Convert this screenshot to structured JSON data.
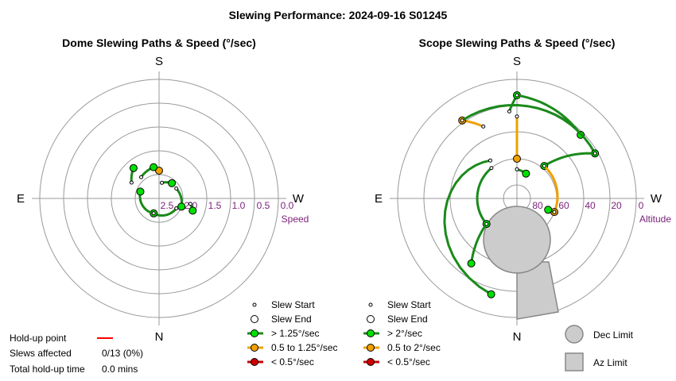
{
  "title": "Slewing Performance: 2024-09-16 S01245",
  "colors": {
    "fast": "#1a8a1a",
    "medium": "#f0a000",
    "slow": "#cc0000",
    "grid": "#999999",
    "tick": "#7a1f7a"
  },
  "chart_data": [
    {
      "type": "scatter",
      "subtitle": "Dome Slewing Paths & Speed (°/sec)",
      "directions": {
        "top": "S",
        "bottom": "N",
        "left": "E",
        "right": "W"
      },
      "axis_name": "Speed",
      "ticks": [
        "2.5",
        "2.0",
        "1.5",
        "1.0",
        "0.5",
        "0.0"
      ],
      "rlim": [
        3.0,
        0.0
      ],
      "slews": [
        {
          "start": {
            "az": 0,
            "r": 2.3
          },
          "end": {
            "az": 0,
            "r": 2.3
          },
          "speed_class": "medium"
        },
        {
          "start": {
            "az": 10,
            "r": 2.6
          },
          "end": {
            "az": 40,
            "r": 2.5
          },
          "speed_class": "fast"
        },
        {
          "start": {
            "az": 60,
            "r": 2.5
          },
          "end": {
            "az": 110,
            "r": 2.4
          },
          "speed_class": "fast"
        },
        {
          "start": {
            "az": 120,
            "r": 2.5
          },
          "end": {
            "az": 200,
            "r": 2.6
          },
          "speed_class": "fast"
        },
        {
          "start": {
            "az": 200,
            "r": 2.6
          },
          "end": {
            "az": 290,
            "r": 2.5
          },
          "speed_class": "fast"
        },
        {
          "start": {
            "az": 300,
            "r": 2.2
          },
          "end": {
            "az": 320,
            "r": 2.0
          },
          "speed_class": "fast"
        },
        {
          "start": {
            "az": 320,
            "r": 2.3
          },
          "end": {
            "az": 350,
            "r": 2.2
          },
          "speed_class": "fast"
        },
        {
          "start": {
            "az": 100,
            "r": 2.2
          },
          "end": {
            "az": 110,
            "r": 2.1
          },
          "speed_class": "fast"
        }
      ],
      "legend": {
        "start": "Slew Start",
        "end": "Slew End",
        "fast": "> 1.25°/sec",
        "medium": "0.5 to 1.25°/sec",
        "slow": "< 0.5°/sec"
      }
    },
    {
      "type": "scatter",
      "subtitle": "Scope Slewing Paths & Speed (°/sec)",
      "directions": {
        "top": "S",
        "bottom": "N",
        "left": "E",
        "right": "W"
      },
      "axis_name": "Altitude",
      "ticks": [
        "80",
        "60",
        "40",
        "20",
        "0"
      ],
      "rlim": [
        90,
        0
      ],
      "slews": [
        {
          "start": {
            "az": 355,
            "alt": 24
          },
          "end": {
            "az": 0,
            "alt": 12
          },
          "speed_class": "fast"
        },
        {
          "start": {
            "az": 0,
            "alt": 12
          },
          "end": {
            "az": 45,
            "alt": 22
          },
          "speed_class": "fast"
        },
        {
          "start": {
            "az": 0,
            "alt": 28
          },
          "end": {
            "az": 0,
            "alt": 60
          },
          "speed_class": "medium"
        },
        {
          "start": {
            "az": 335,
            "alt": 30
          },
          "end": {
            "az": 325,
            "alt": 18
          },
          "speed_class": "medium"
        },
        {
          "start": {
            "az": 325,
            "alt": 18
          },
          "end": {
            "az": 60,
            "alt": 22
          },
          "speed_class": "fast"
        },
        {
          "start": {
            "az": 60,
            "alt": 22
          },
          "end": {
            "az": 40,
            "alt": 58
          },
          "speed_class": "fast"
        },
        {
          "start": {
            "az": 40,
            "alt": 58
          },
          "end": {
            "az": 110,
            "alt": 60
          },
          "speed_class": "medium"
        },
        {
          "start": {
            "az": 110,
            "alt": 60
          },
          "end": {
            "az": 110,
            "alt": 65
          },
          "speed_class": "fast"
        },
        {
          "start": {
            "az": 320,
            "alt": 60
          },
          "end": {
            "az": 230,
            "alt": 60
          },
          "speed_class": "fast"
        },
        {
          "start": {
            "az": 230,
            "alt": 60
          },
          "end": {
            "az": 215,
            "alt": 30
          },
          "speed_class": "fast"
        },
        {
          "start": {
            "az": 325,
            "alt": 55
          },
          "end": {
            "az": 195,
            "alt": 15
          },
          "speed_class": "fast"
        },
        {
          "start": {
            "az": 0,
            "alt": 68
          },
          "end": {
            "az": 20,
            "alt": 70
          },
          "speed_class": "fast"
        }
      ],
      "limits": {
        "dec_label": "Dec Limit",
        "az_label": "Az Limit"
      },
      "legend": {
        "start": "Slew Start",
        "end": "Slew End",
        "fast": "> 2°/sec",
        "medium": "0.5 to 2°/sec",
        "slow": "< 0.5°/sec"
      }
    }
  ],
  "holdup": {
    "point_label": "Hold-up point",
    "slews_label": "Slews affected",
    "slews_value": "0/13 (0%)",
    "time_label": "Total hold-up time",
    "time_value": "0.0 mins"
  }
}
